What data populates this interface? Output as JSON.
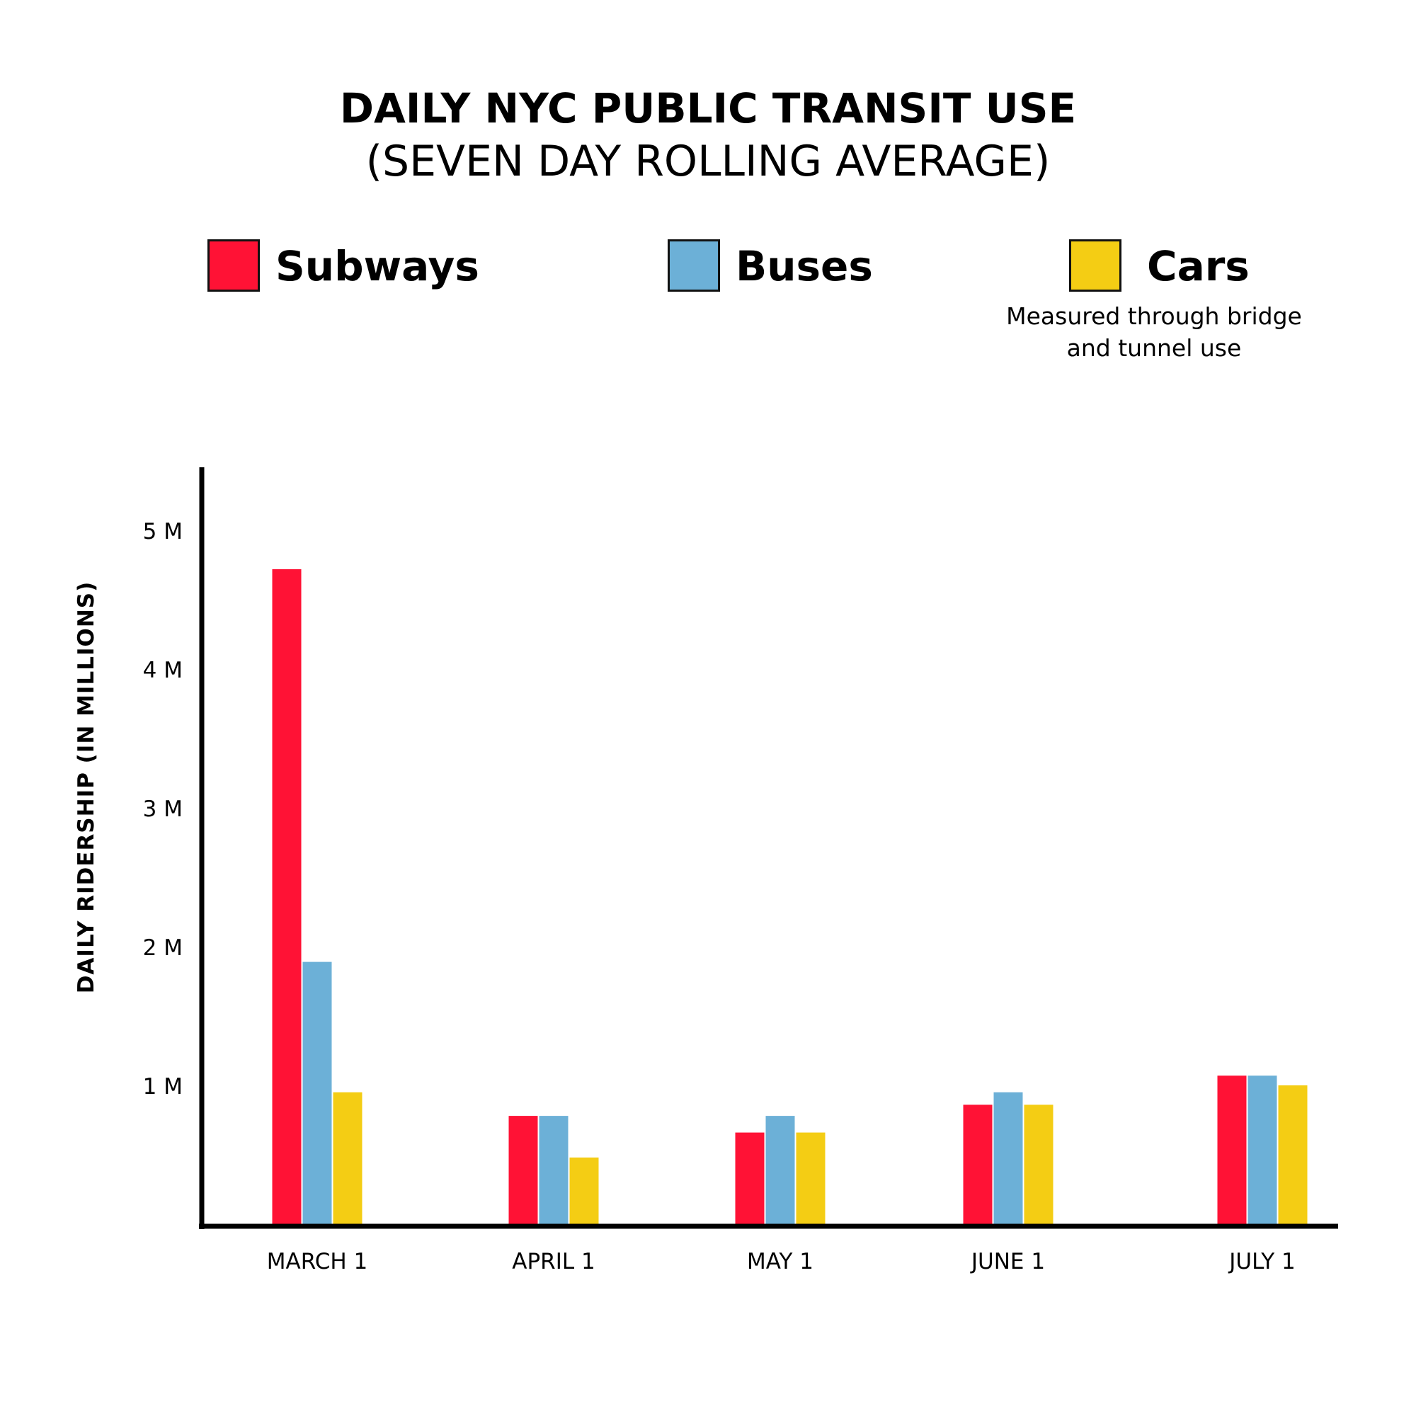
{
  "header": {
    "title": "DAILY NYC PUBLIC TRANSIT USE",
    "subtitle": "(SEVEN DAY ROLLING AVERAGE)"
  },
  "legend": {
    "items": [
      {
        "label": "Subways",
        "color": "#ff1235"
      },
      {
        "label": "Buses",
        "color": "#6cb0d7"
      },
      {
        "label": "Cars",
        "color": "#f4cd14"
      }
    ],
    "note": "Measured through bridge and tunnel use"
  },
  "chart_data": {
    "type": "bar",
    "title": "DAILY NYC PUBLIC TRANSIT USE",
    "subtitle": "(SEVEN DAY ROLLING AVERAGE)",
    "xlabel": "",
    "ylabel": "DAILY RIDERSHIP (IN MILLIONS)",
    "categories": [
      "MARCH 1",
      "APRIL 1",
      "MAY 1",
      "JUNE 1",
      "JULY 1"
    ],
    "series": [
      {
        "name": "Subways",
        "color": "#ff1235",
        "values": [
          4.72,
          0.78,
          0.66,
          0.86,
          1.07
        ]
      },
      {
        "name": "Buses",
        "color": "#6cb0d7",
        "values": [
          1.89,
          0.78,
          0.78,
          0.95,
          1.07
        ]
      },
      {
        "name": "Cars",
        "color": "#f4cd14",
        "values": [
          0.95,
          0.48,
          0.66,
          0.86,
          1.0
        ]
      }
    ],
    "y_ticks": [
      {
        "value": 1,
        "label": "1 M"
      },
      {
        "value": 2,
        "label": "2 M"
      },
      {
        "value": 3,
        "label": "3 M"
      },
      {
        "value": 4,
        "label": "4 M"
      },
      {
        "value": 5,
        "label": "5 M"
      }
    ],
    "ylim": [
      0,
      5.45
    ],
    "grid": false,
    "legend_position": "top"
  }
}
